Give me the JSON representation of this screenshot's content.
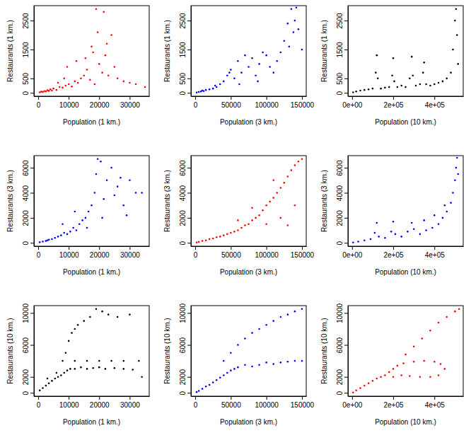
{
  "chart_data": [
    {
      "type": "scatter",
      "x_label": "Population (1 km.)",
      "y_label": "Restaurants (1 km.)",
      "color": "red",
      "xlim": [
        -1400,
        36400
      ],
      "ylim": [
        -116,
        3016
      ],
      "xticks": [
        0,
        10000,
        20000,
        30000
      ],
      "yticks": [
        0,
        500,
        1500,
        2500
      ],
      "x": [
        500,
        1000,
        1500,
        2000,
        2500,
        3000,
        3500,
        4000,
        4500,
        5000,
        6000,
        7000,
        8000,
        9000,
        10000,
        11000,
        12000,
        13000,
        14000,
        15000,
        16000,
        17000,
        18000,
        19000,
        20000,
        21000,
        22000,
        23000,
        24000,
        25000,
        26000,
        28000,
        30000,
        32000,
        35000,
        9500,
        12500,
        17500,
        19500,
        21500,
        6500,
        8500,
        15500,
        18500,
        22500
      ],
      "values": [
        20,
        40,
        30,
        60,
        50,
        90,
        70,
        120,
        80,
        150,
        100,
        200,
        180,
        250,
        300,
        220,
        400,
        350,
        500,
        600,
        800,
        450,
        1400,
        2900,
        1000,
        700,
        1300,
        600,
        2000,
        900,
        500,
        400,
        350,
        300,
        200,
        900,
        1100,
        1600,
        2100,
        2800,
        350,
        500,
        1200,
        300,
        1700
      ]
    },
    {
      "type": "scatter",
      "x_label": "Population (3 km.)",
      "y_label": "Restaurants (1 km.)",
      "color": "blue",
      "xlim": [
        -6000,
        156000
      ],
      "ylim": [
        -116,
        3016
      ],
      "xticks": [
        0,
        50000,
        100000,
        150000
      ],
      "yticks": [
        0,
        500,
        1500,
        2500
      ],
      "x": [
        2000,
        5000,
        8000,
        10000,
        15000,
        20000,
        25000,
        30000,
        35000,
        40000,
        45000,
        50000,
        55000,
        60000,
        65000,
        70000,
        75000,
        80000,
        85000,
        90000,
        95000,
        100000,
        105000,
        110000,
        115000,
        120000,
        125000,
        130000,
        135000,
        140000,
        145000,
        150000,
        12000,
        28000,
        48000,
        62000,
        88000,
        132000,
        138000,
        142000
      ],
      "values": [
        10,
        30,
        50,
        80,
        100,
        120,
        150,
        200,
        300,
        400,
        600,
        800,
        500,
        1100,
        700,
        1300,
        900,
        1200,
        600,
        1000,
        1400,
        1300,
        900,
        700,
        1100,
        1400,
        1800,
        2400,
        2900,
        2500,
        2200,
        1500,
        60,
        250,
        700,
        300,
        400,
        1600,
        2100,
        2950
      ]
    },
    {
      "type": "scatter",
      "x_label": "Population (10 km.)",
      "y_label": "Restaurants (1 km.)",
      "color": "black",
      "xlim": [
        -20000,
        540000
      ],
      "ylim": [
        -116,
        3016
      ],
      "xticks": [
        {
          "value": 0,
          "label": "0e+00"
        },
        {
          "value": 200000,
          "label": "2e+05"
        },
        {
          "value": 400000,
          "label": "4e+05"
        }
      ],
      "yticks": [
        0,
        500,
        1500,
        2500
      ],
      "x": [
        5000,
        20000,
        40000,
        60000,
        80000,
        100000,
        115000,
        120000,
        125000,
        140000,
        160000,
        180000,
        195000,
        200000,
        205000,
        220000,
        240000,
        260000,
        280000,
        290000,
        295000,
        310000,
        330000,
        345000,
        350000,
        360000,
        380000,
        400000,
        420000,
        440000,
        460000,
        480000,
        490000,
        500000,
        505000,
        510000,
        515000
      ],
      "values": [
        20,
        50,
        80,
        100,
        120,
        150,
        700,
        1300,
        500,
        150,
        180,
        200,
        600,
        1200,
        400,
        200,
        250,
        200,
        500,
        1250,
        600,
        250,
        300,
        700,
        1050,
        300,
        250,
        300,
        350,
        400,
        500,
        700,
        1500,
        2500,
        2900,
        2000,
        1000
      ]
    },
    {
      "type": "scatter",
      "x_label": "Population (1 km.)",
      "y_label": "Restaurants (3 km.)",
      "color": "blue",
      "xlim": [
        -1400,
        36400
      ],
      "ylim": [
        -268,
        6968
      ],
      "xticks": [
        0,
        10000,
        20000,
        30000
      ],
      "yticks": [
        0,
        2000,
        4000,
        6000
      ],
      "x": [
        500,
        1500,
        2500,
        3500,
        4500,
        5500,
        6500,
        7500,
        8500,
        9500,
        10500,
        11500,
        12500,
        13500,
        14500,
        15500,
        16500,
        17500,
        18500,
        19500,
        20500,
        21500,
        22500,
        24000,
        26000,
        28000,
        30000,
        32000,
        34000,
        3000,
        8000,
        12000,
        16000,
        19000,
        21000,
        25000,
        27000,
        29000
      ],
      "values": [
        50,
        100,
        150,
        250,
        300,
        400,
        500,
        600,
        800,
        700,
        900,
        1200,
        1000,
        1500,
        1800,
        2000,
        2500,
        3000,
        4000,
        6700,
        6500,
        3500,
        5000,
        6000,
        4500,
        3000,
        5000,
        4000,
        4000,
        200,
        1500,
        2500,
        1200,
        5500,
        2000,
        3800,
        5200,
        2200
      ]
    },
    {
      "type": "scatter",
      "x_label": "Population (3 km.)",
      "y_label": "Restaurants (3 km.)",
      "color": "red",
      "xlim": [
        -6000,
        156000
      ],
      "ylim": [
        -268,
        6968
      ],
      "xticks": [
        0,
        50000,
        100000,
        150000
      ],
      "yticks": [
        0,
        2000,
        4000,
        6000
      ],
      "x": [
        2000,
        5000,
        10000,
        15000,
        20000,
        25000,
        30000,
        35000,
        40000,
        45000,
        50000,
        55000,
        60000,
        65000,
        70000,
        75000,
        80000,
        85000,
        90000,
        95000,
        100000,
        105000,
        110000,
        115000,
        120000,
        125000,
        130000,
        135000,
        140000,
        145000,
        150000,
        60000,
        80000,
        100000,
        120000,
        140000,
        110000,
        130000
      ],
      "values": [
        30,
        80,
        150,
        200,
        300,
        350,
        450,
        500,
        600,
        700,
        800,
        900,
        1000,
        1200,
        1400,
        1500,
        1800,
        2000,
        2200,
        2600,
        3000,
        3300,
        3600,
        4000,
        4400,
        4800,
        5300,
        5800,
        6200,
        6500,
        6700,
        1800,
        2800,
        1500,
        2000,
        3000,
        5000,
        1400
      ]
    },
    {
      "type": "scatter",
      "x_label": "Population (10 km.)",
      "y_label": "Restaurants (3 km.)",
      "color": "blue",
      "xlim": [
        -20000,
        540000
      ],
      "ylim": [
        -268,
        6968
      ],
      "xticks": [
        {
          "value": 0,
          "label": "0e+00"
        },
        {
          "value": 200000,
          "label": "2e+05"
        },
        {
          "value": 400000,
          "label": "4e+05"
        }
      ],
      "yticks": [
        0,
        2000,
        4000,
        6000
      ],
      "x": [
        5000,
        30000,
        60000,
        90000,
        110000,
        120000,
        130000,
        160000,
        190000,
        200000,
        210000,
        240000,
        270000,
        290000,
        300000,
        330000,
        360000,
        390000,
        420000,
        440000,
        460000,
        480000,
        490000,
        500000,
        505000,
        510000,
        515000,
        400000,
        450000,
        350000
      ],
      "values": [
        30,
        100,
        200,
        300,
        800,
        1600,
        500,
        400,
        900,
        1700,
        700,
        500,
        900,
        1600,
        1100,
        700,
        1000,
        1200,
        1500,
        2000,
        2500,
        3200,
        4000,
        5000,
        6000,
        6800,
        5500,
        2200,
        3000,
        1800
      ]
    },
    {
      "type": "scatter",
      "x_label": "Population (1 km.)",
      "y_label": "Restaurants (10 km.)",
      "color": "black",
      "xlim": [
        -1400,
        36400
      ],
      "ylim": [
        -420,
        10920
      ],
      "xticks": [
        0,
        10000,
        20000,
        30000
      ],
      "yticks": [
        0,
        2000,
        6000,
        10000
      ],
      "x": [
        500,
        1500,
        2500,
        3500,
        4500,
        5500,
        6500,
        7500,
        8500,
        9500,
        10500,
        12000,
        14000,
        16000,
        18000,
        20000,
        22000,
        25000,
        28000,
        31000,
        34000,
        9000,
        10000,
        11000,
        12000,
        13000,
        15000,
        17000,
        19000,
        21000,
        23000,
        26000,
        30000,
        8000,
        12000,
        16000,
        20000,
        24000,
        28000,
        33000,
        3000,
        6000
      ],
      "values": [
        300,
        600,
        900,
        1200,
        1500,
        1800,
        2000,
        2200,
        2500,
        2800,
        3000,
        3000,
        3200,
        3000,
        3100,
        3200,
        3000,
        3100,
        3000,
        2900,
        2000,
        5000,
        6500,
        7500,
        8000,
        8500,
        9000,
        9500,
        10500,
        10200,
        9800,
        9500,
        9800,
        4000,
        4000,
        4000,
        4000,
        4000,
        4000,
        4000,
        1800,
        2500
      ]
    },
    {
      "type": "scatter",
      "x_label": "Population (3 km.)",
      "y_label": "Restaurants (10 km.)",
      "color": "blue",
      "xlim": [
        -6000,
        156000
      ],
      "ylim": [
        -420,
        10920
      ],
      "xticks": [
        0,
        50000,
        100000,
        150000
      ],
      "yticks": [
        0,
        2000,
        6000,
        10000
      ],
      "x": [
        2000,
        5000,
        10000,
        15000,
        20000,
        25000,
        30000,
        35000,
        40000,
        45000,
        50000,
        55000,
        60000,
        70000,
        80000,
        90000,
        100000,
        110000,
        120000,
        130000,
        140000,
        150000,
        40000,
        50000,
        60000,
        70000,
        80000,
        90000,
        100000,
        110000,
        120000,
        130000,
        140000,
        150000
      ],
      "values": [
        100,
        250,
        500,
        800,
        1000,
        1300,
        1600,
        1900,
        2200,
        2500,
        2800,
        3000,
        3200,
        3500,
        3300,
        3500,
        3800,
        3600,
        3800,
        3900,
        4000,
        4000,
        4000,
        5000,
        6000,
        6800,
        7500,
        8000,
        8500,
        9000,
        9500,
        9800,
        10200,
        10500
      ]
    },
    {
      "type": "scatter",
      "x_label": "Population (10 km.)",
      "y_label": "Restaurants (10 km.)",
      "color": "red",
      "xlim": [
        -20000,
        540000
      ],
      "ylim": [
        -420,
        10920
      ],
      "xticks": [
        {
          "value": 0,
          "label": "0e+00"
        },
        {
          "value": 200000,
          "label": "2e+05"
        },
        {
          "value": 400000,
          "label": "4e+05"
        }
      ],
      "yticks": [
        0,
        2000,
        6000,
        10000
      ],
      "x": [
        5000,
        20000,
        40000,
        60000,
        80000,
        100000,
        120000,
        140000,
        160000,
        180000,
        200000,
        220000,
        250000,
        300000,
        350000,
        400000,
        430000,
        450000,
        420000,
        380000,
        330000,
        280000,
        240000,
        200000,
        260000,
        300000,
        340000,
        380000,
        420000,
        460000,
        500000,
        520000
      ],
      "values": [
        50,
        300,
        600,
        900,
        1200,
        1500,
        1800,
        2000,
        2200,
        2600,
        3000,
        3400,
        3700,
        3900,
        4000,
        3900,
        3600,
        3000,
        2200,
        2000,
        2000,
        2100,
        2200,
        2000,
        4800,
        5800,
        6800,
        7800,
        8800,
        9500,
        10200,
        10500
      ]
    }
  ]
}
